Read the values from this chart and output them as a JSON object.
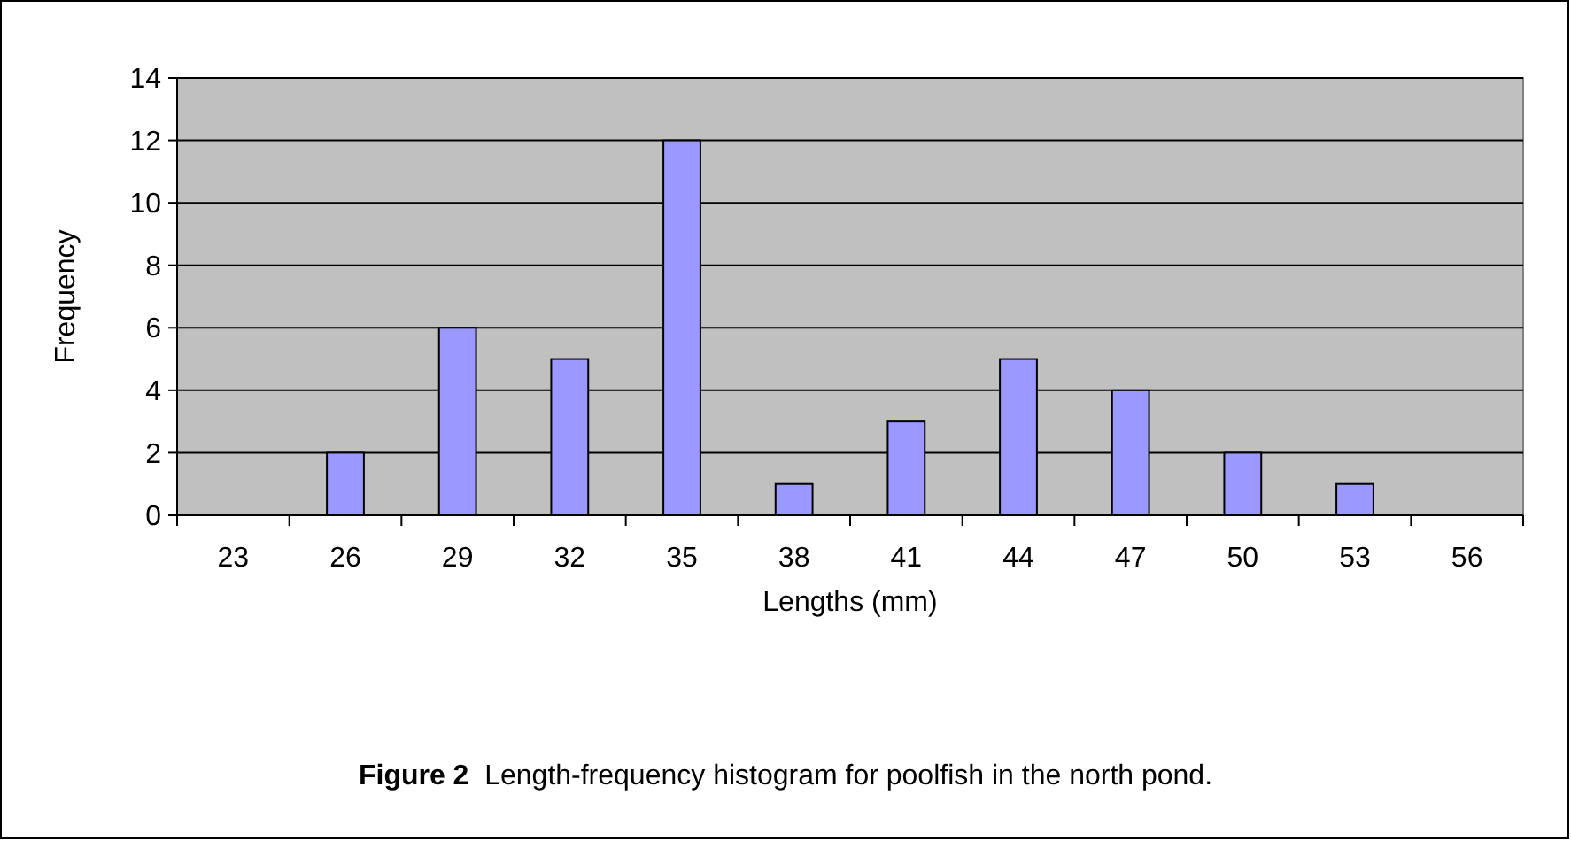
{
  "chart_data": {
    "type": "bar",
    "xlabel": "Lengths (mm)",
    "ylabel": "Frequency",
    "categories": [
      "23",
      "26",
      "29",
      "32",
      "35",
      "38",
      "41",
      "44",
      "47",
      "50",
      "53",
      "56"
    ],
    "values": [
      0,
      2,
      6,
      5,
      12,
      1,
      3,
      5,
      4,
      2,
      1,
      0
    ],
    "color": "#9999ff",
    "ylim": [
      0,
      14
    ],
    "yticks": [
      0,
      2,
      4,
      6,
      8,
      10,
      12,
      14
    ],
    "grid": "y",
    "annotations": [
      "Figure 2",
      "Length-frequency histogram for poolfish in the north pond."
    ]
  }
}
